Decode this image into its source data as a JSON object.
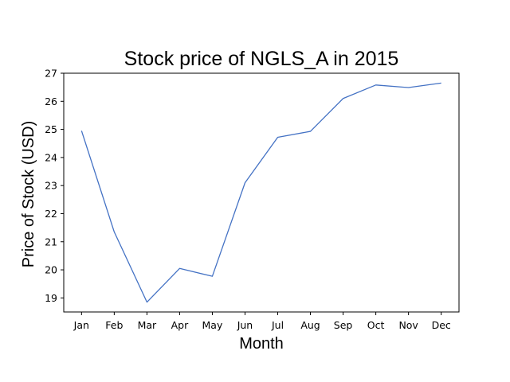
{
  "chart_data": {
    "type": "line",
    "title": "Stock price of NGLS_A in 2015",
    "xlabel": "Month",
    "ylabel": "Price of Stock (USD)",
    "categories": [
      "Jan",
      "Feb",
      "Mar",
      "Apr",
      "May",
      "Jun",
      "Jul",
      "Aug",
      "Sep",
      "Oct",
      "Nov",
      "Dec"
    ],
    "series": [
      {
        "values": [
          24.95,
          21.35,
          18.85,
          20.05,
          19.77,
          23.1,
          24.72,
          24.93,
          26.1,
          26.58,
          26.49,
          26.65
        ]
      }
    ],
    "ylim": [
      18.5,
      27.0
    ],
    "yticks": [
      19,
      20,
      21,
      22,
      23,
      24,
      25,
      26,
      27
    ],
    "grid": false,
    "legend": "none",
    "colors": {
      "line": "#4472c4",
      "axes": "#000000",
      "background": "#ffffff"
    }
  }
}
